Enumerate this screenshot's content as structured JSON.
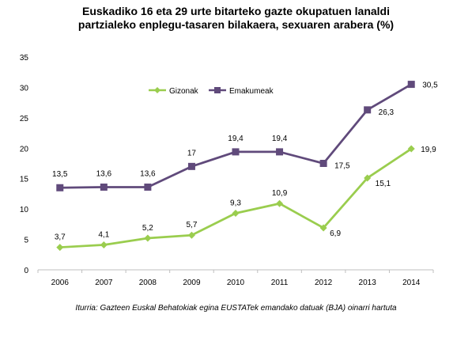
{
  "chart_data": {
    "type": "line",
    "title_line1": "Euskadiko 16 eta 29 urte bitarteko gazte okupatuen lanaldi",
    "title_line2": "partzialeko enplegu-tasaren bilakaera, sexuaren arabera (%)",
    "x": [
      "2006",
      "2007",
      "2008",
      "2009",
      "2010",
      "2011",
      "2012",
      "2013",
      "2014"
    ],
    "ylim": [
      0,
      35
    ],
    "yticks": [
      0,
      5,
      10,
      15,
      20,
      25,
      30,
      35
    ],
    "grid": false,
    "legend": "top-center",
    "series": [
      {
        "name": "Gizonak",
        "color": "#9ACD4E",
        "marker": "diamond",
        "values": [
          3.7,
          4.1,
          5.2,
          5.7,
          9.3,
          10.9,
          6.9,
          15.1,
          19.9
        ],
        "labels": [
          "3,7",
          "4,1",
          "5,2",
          "5,7",
          "9,3",
          "10,9",
          "6,9",
          "15,1",
          "19,9"
        ]
      },
      {
        "name": "Emakumeak",
        "color": "#604A7B",
        "marker": "square",
        "values": [
          13.5,
          13.6,
          13.6,
          17,
          19.4,
          19.4,
          17.5,
          26.3,
          30.5
        ],
        "labels": [
          "13,5",
          "13,6",
          "13,6",
          "17",
          "19,4",
          "19,4",
          "17,5",
          "26,3",
          "30,5"
        ]
      }
    ],
    "source": "Iturria: Gazteen Euskal Behatokiak egina EUSTATek emandako datuak  (BJA) oinarri hartuta"
  }
}
